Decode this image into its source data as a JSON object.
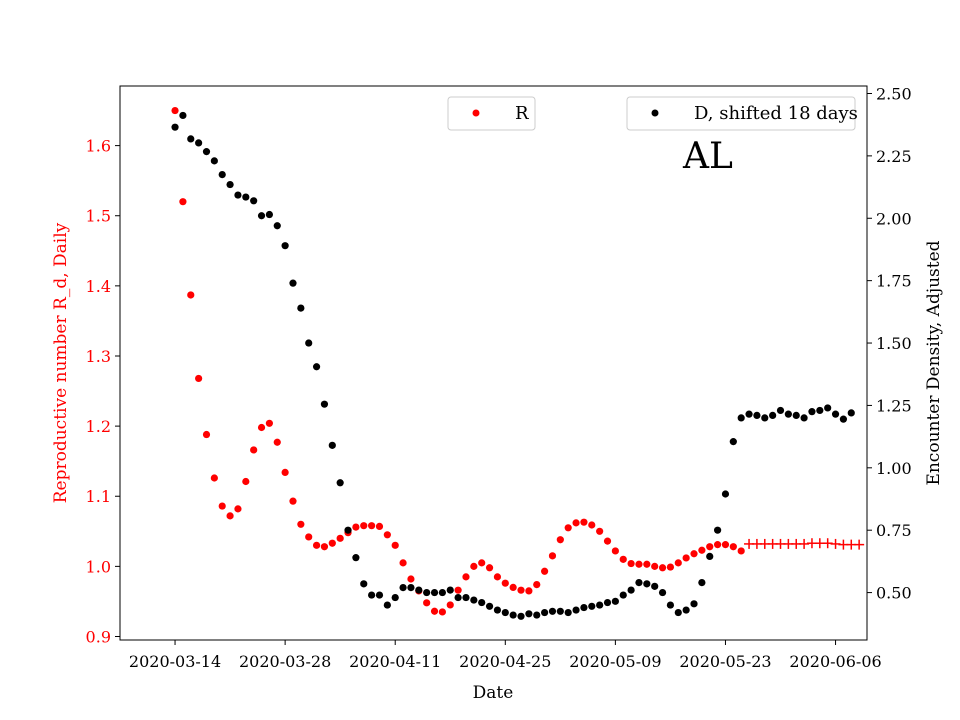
{
  "chart_data": {
    "type": "scatter",
    "xlabel": "Date",
    "ylabel_left": "Reproductive number R_d, Daily",
    "ylabel_right": "Encounter Density, Adjusted",
    "annotation": "AL",
    "x_ticks": [
      "2020-03-14",
      "2020-03-28",
      "2020-04-11",
      "2020-04-25",
      "2020-05-09",
      "2020-05-23",
      "2020-06-06"
    ],
    "y_left_ticks": [
      "0.9",
      "1.0",
      "1.1",
      "1.2",
      "1.3",
      "1.4",
      "1.5",
      "1.6"
    ],
    "y_right_ticks": [
      "0.50",
      "0.75",
      "1.00",
      "1.25",
      "1.50",
      "1.75",
      "2.00",
      "2.25",
      "2.50"
    ],
    "x_range": [
      "2020-03-07",
      "2020-06-10"
    ],
    "ylim_left": [
      0.895,
      1.685
    ],
    "ylim_right": [
      0.31,
      2.53
    ],
    "colors": {
      "R": "#ff0000",
      "D": "#000000",
      "right_axis": "#000000",
      "left_axis": "#ff0000"
    },
    "legend_left": {
      "label": "R",
      "placement": "top-center"
    },
    "legend_right": {
      "label": "D, shifted 18 days",
      "placement": "top-right"
    },
    "series": [
      {
        "name": "R",
        "axis": "left",
        "marker": "dot",
        "start": "2020-03-14",
        "values": [
          1.65,
          1.52,
          1.387,
          1.268,
          1.188,
          1.126,
          1.086,
          1.072,
          1.082,
          1.121,
          1.166,
          1.198,
          1.204,
          1.177,
          1.134,
          1.093,
          1.06,
          1.042,
          1.03,
          1.028,
          1.033,
          1.04,
          1.048,
          1.056,
          1.058,
          1.058,
          1.057,
          1.045,
          1.03,
          1.005,
          0.982,
          0.965,
          0.948,
          0.936,
          0.935,
          0.945,
          0.966,
          0.985,
          1.0,
          1.005,
          0.998,
          0.985,
          0.976,
          0.97,
          0.966,
          0.965,
          0.974,
          0.993,
          1.015,
          1.038,
          1.055,
          1.062,
          1.063,
          1.059,
          1.05,
          1.036,
          1.022,
          1.01,
          1.004,
          1.003,
          1.003,
          1.0,
          0.998,
          0.999,
          1.005,
          1.012,
          1.018,
          1.023,
          1.028,
          1.031,
          1.031,
          1.028,
          1.022
        ]
      },
      {
        "name": "R",
        "axis": "left",
        "marker": "plus",
        "start": "2020-05-26",
        "values": [
          1.032,
          1.032,
          1.032,
          1.032,
          1.032,
          1.032,
          1.032,
          1.032,
          1.033,
          1.033,
          1.033,
          1.032,
          1.031,
          1.031,
          1.031
        ]
      },
      {
        "name": "D, shifted 18 days",
        "axis": "right",
        "marker": "dot",
        "start": "2020-03-14",
        "values": [
          2.365,
          2.412,
          2.318,
          2.302,
          2.267,
          2.23,
          2.175,
          2.135,
          2.093,
          2.085,
          2.07,
          2.01,
          2.015,
          1.97,
          1.89,
          1.74,
          1.64,
          1.5,
          1.405,
          1.255,
          1.09,
          0.94,
          0.75,
          0.64,
          0.535,
          0.49,
          0.49,
          0.45,
          0.48,
          0.52,
          0.52,
          0.51,
          0.5,
          0.5,
          0.5,
          0.51,
          0.48,
          0.48,
          0.47,
          0.46,
          0.445,
          0.43,
          0.42,
          0.41,
          0.405,
          0.415,
          0.41,
          0.42,
          0.425,
          0.425,
          0.42,
          0.43,
          0.44,
          0.445,
          0.45,
          0.46,
          0.465,
          0.49,
          0.51,
          0.54,
          0.535,
          0.525,
          0.5,
          0.45,
          0.42,
          0.43,
          0.455,
          0.54,
          0.645,
          0.75,
          0.895,
          1.105,
          1.2,
          1.215,
          1.21,
          1.2,
          1.21,
          1.23,
          1.215,
          1.21,
          1.2,
          1.225,
          1.23,
          1.24,
          1.215,
          1.195,
          1.22
        ]
      }
    ]
  }
}
